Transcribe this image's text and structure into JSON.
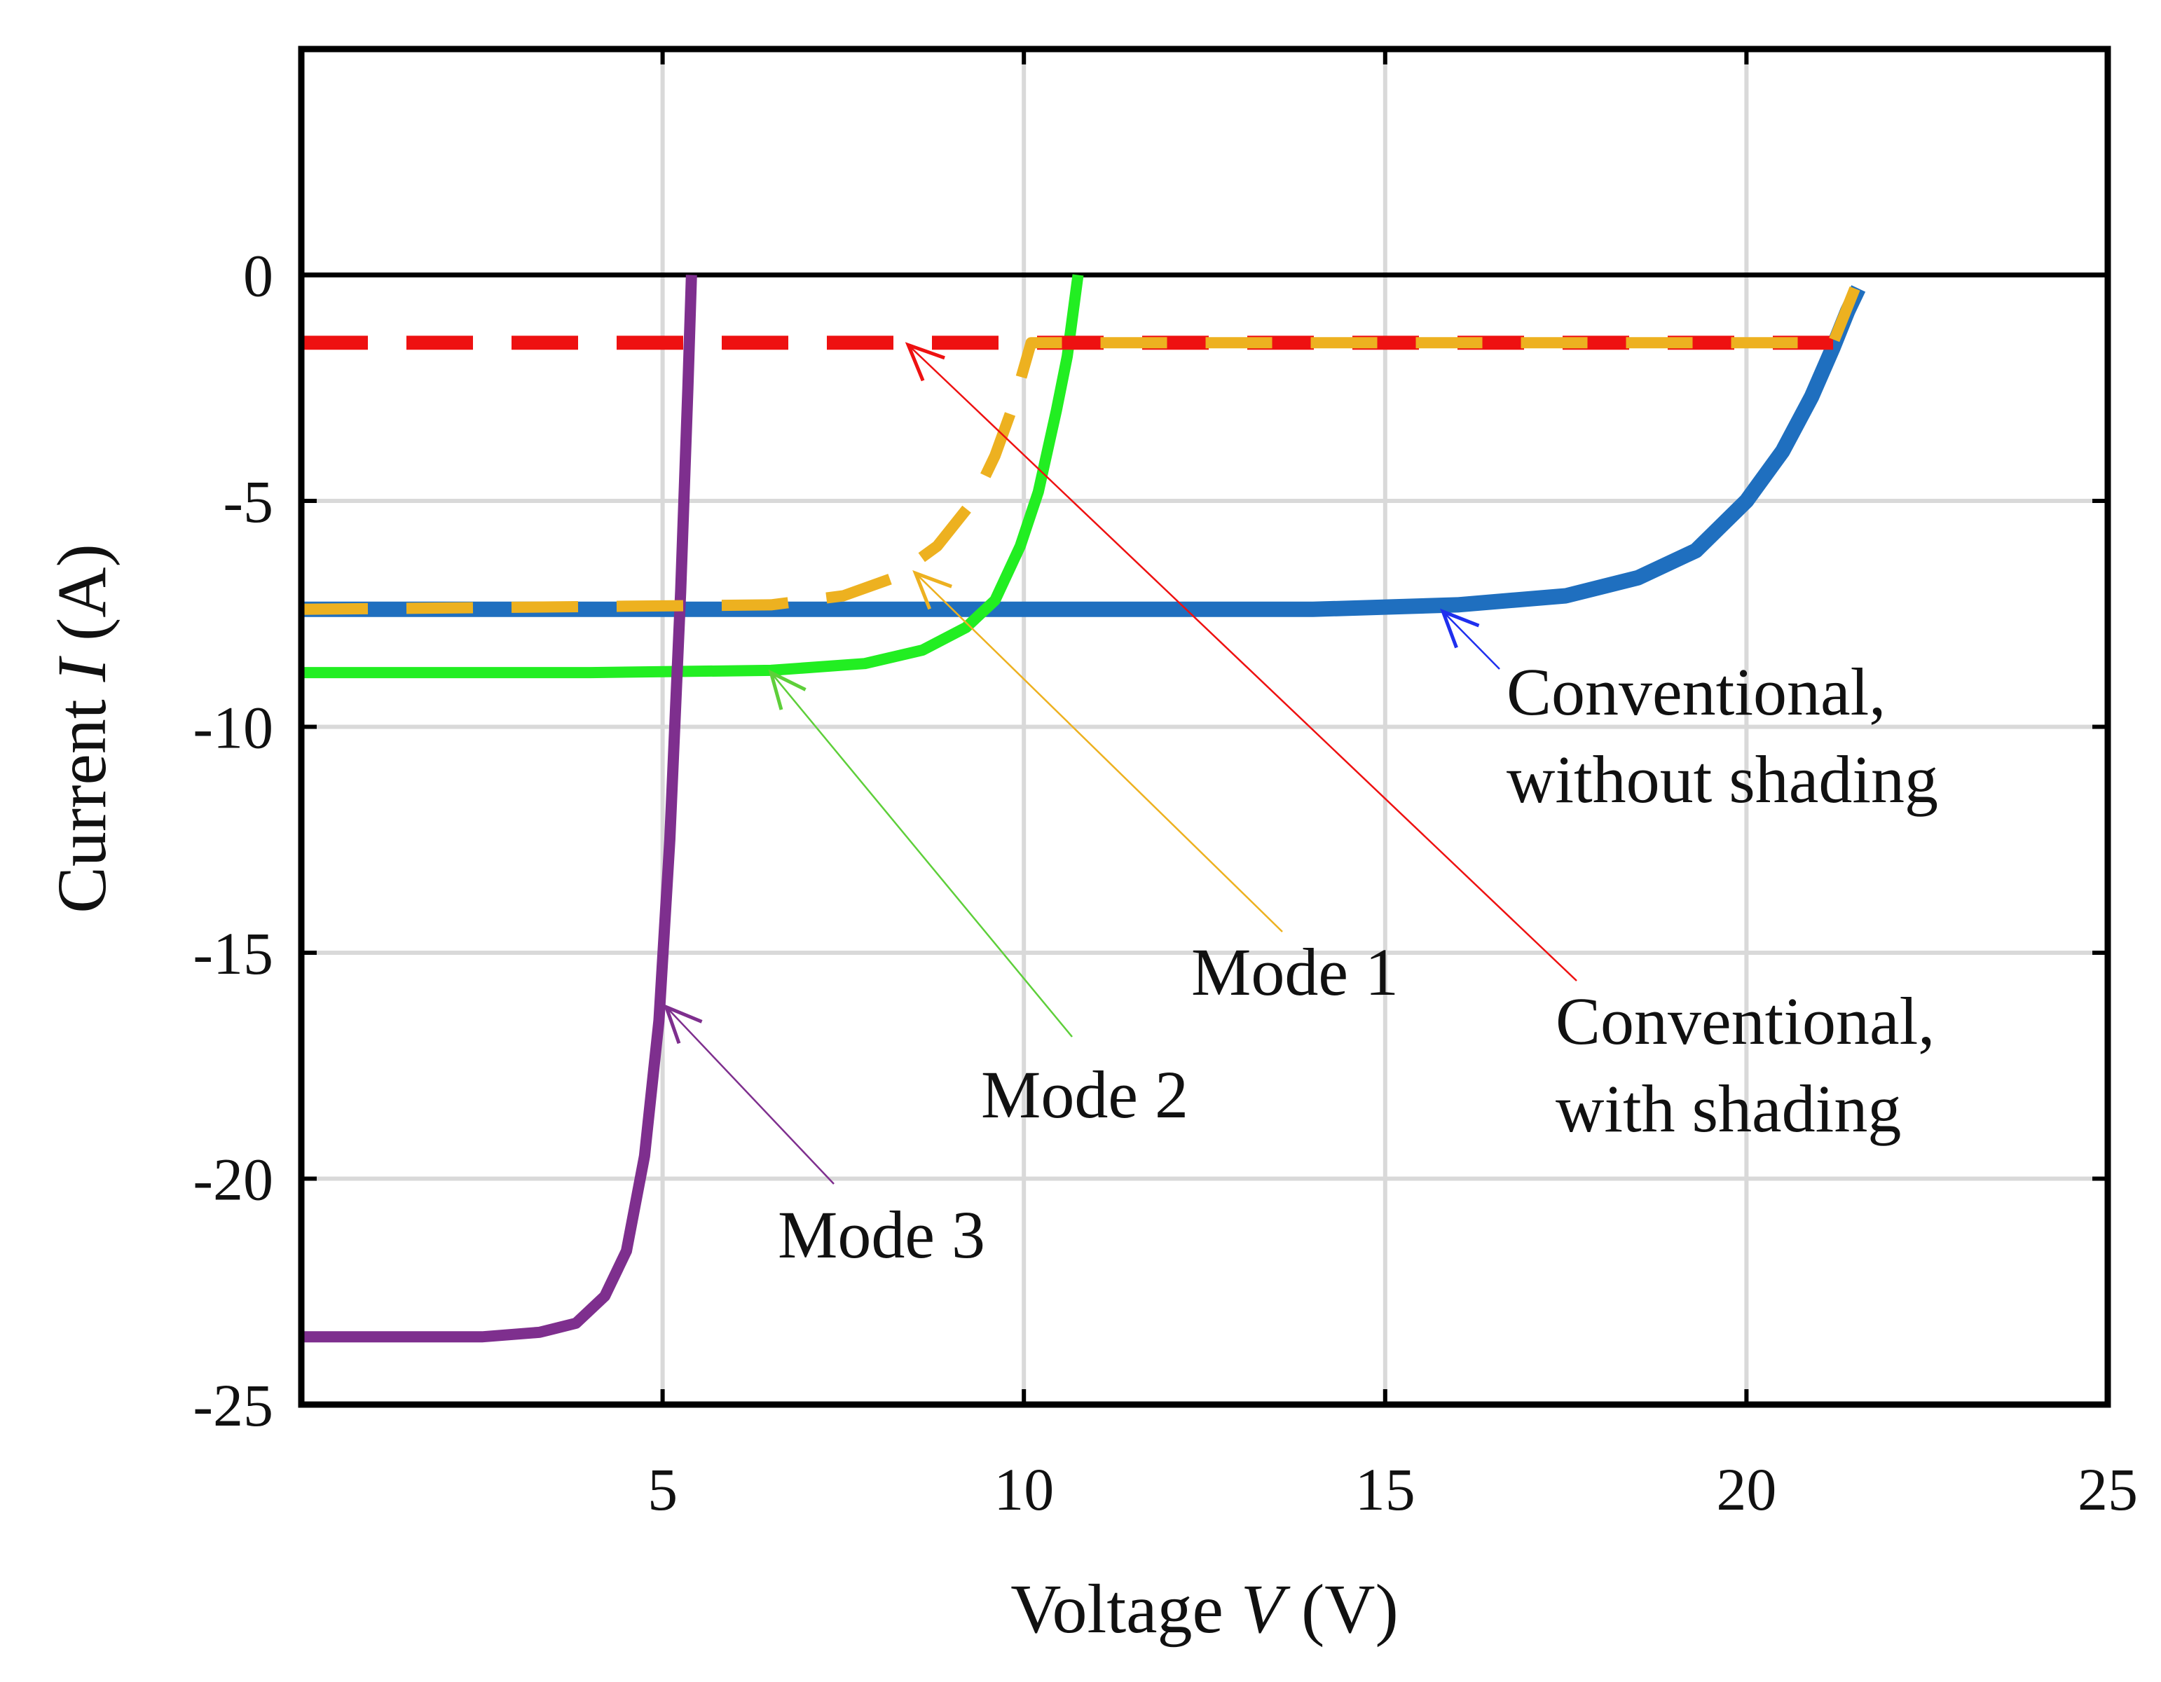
{
  "chart_data": {
    "type": "line",
    "title": "",
    "xlabel": {
      "prefix": "Voltage ",
      "symbol": "V",
      "unit": " (V)"
    },
    "ylabel": {
      "prefix": "Current ",
      "symbol": "I",
      "unit": " (A)"
    },
    "xlim": [
      0,
      25
    ],
    "ylim": [
      -25,
      5
    ],
    "xticks": [
      5,
      10,
      15,
      20,
      25
    ],
    "yticks": [
      0,
      -5,
      -10,
      -15,
      -20,
      -25
    ],
    "grid": true,
    "colors": {
      "blue": "#1f6fbf",
      "red": "#ee1111",
      "orange": "#edb120",
      "green": "#22ee22",
      "purple": "#7e2f8e",
      "zero_line": "#000000",
      "grid": "#d9d9d9"
    },
    "series": [
      {
        "name": "Conventional, without shading",
        "color": "#1f6fbf",
        "style": "solid",
        "x": [
          0,
          5,
          10,
          14,
          16,
          17.5,
          18.5,
          19.3,
          20,
          20.5,
          20.9,
          21.2,
          21.4,
          21.55
        ],
        "y": [
          -7.4,
          -7.4,
          -7.4,
          -7.4,
          -7.3,
          -7.1,
          -6.7,
          -6.1,
          -5.0,
          -3.9,
          -2.7,
          -1.6,
          -0.8,
          -0.3
        ]
      },
      {
        "name": "Conventional, with shading",
        "color": "#ee1111",
        "style": "dashed",
        "x": [
          0,
          21.2
        ],
        "y": [
          -1.5,
          -1.5
        ]
      },
      {
        "name": "Mode 1",
        "color": "#edb120",
        "style": "dashed",
        "x": [
          0,
          6.5,
          7.5,
          8.2,
          8.8,
          9.3,
          9.6,
          9.85,
          10.1,
          12,
          15,
          18,
          21.2,
          21.5
        ],
        "y": [
          -7.4,
          -7.3,
          -7.1,
          -6.7,
          -6.0,
          -5.0,
          -4.0,
          -2.9,
          -1.5,
          -1.5,
          -1.5,
          -1.5,
          -1.5,
          -0.3
        ]
      },
      {
        "name": "Mode 2",
        "color": "#22ee22",
        "style": "solid",
        "x": [
          0,
          4,
          6.5,
          7.8,
          8.6,
          9.2,
          9.6,
          9.95,
          10.2,
          10.45,
          10.6,
          10.75
        ],
        "y": [
          -8.8,
          -8.8,
          -8.75,
          -8.6,
          -8.3,
          -7.8,
          -7.2,
          -6.0,
          -4.8,
          -3.0,
          -1.8,
          0
        ]
      },
      {
        "name": "Mode 3",
        "color": "#7e2f8e",
        "style": "solid",
        "x": [
          0,
          2.5,
          3.3,
          3.8,
          4.2,
          4.5,
          4.75,
          4.95,
          5.1,
          5.25,
          5.35,
          5.4
        ],
        "y": [
          -23.5,
          -23.5,
          -23.4,
          -23.2,
          -22.6,
          -21.6,
          -19.5,
          -16.5,
          -12.5,
          -7.0,
          -2.5,
          0
        ]
      }
    ],
    "annotations": [
      {
        "text": [
          "Conventional,",
          "without shading"
        ],
        "arrow_to": [
          15.8,
          -7.45
        ],
        "color": "#1f2fee"
      },
      {
        "text": [
          "Conventional,",
          "with shading"
        ],
        "arrow_to": [
          8.4,
          -1.55
        ],
        "color": "#ee1111"
      },
      {
        "text": [
          "Mode 1"
        ],
        "arrow_to": [
          8.5,
          -6.6
        ],
        "color": "#edb120"
      },
      {
        "text": [
          "Mode 2"
        ],
        "arrow_to": [
          6.5,
          -8.8
        ],
        "color": "#5ecf3a"
      },
      {
        "text": [
          "Mode 3"
        ],
        "arrow_to": [
          5.05,
          -16.2
        ],
        "color": "#7e2f8e"
      }
    ]
  }
}
